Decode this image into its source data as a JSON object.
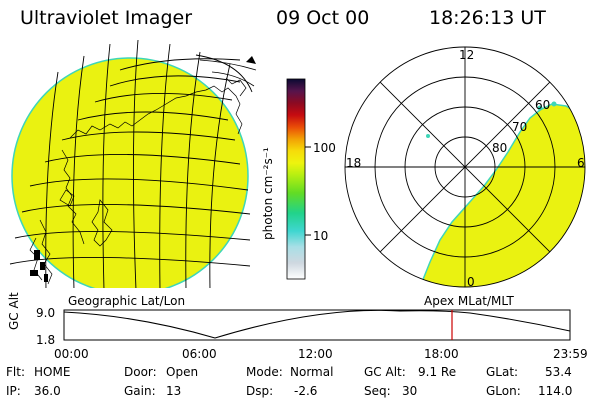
{
  "header": {
    "instrument": "Ultraviolet Imager",
    "date": "09 Oct 00",
    "time": "18:26:13 UT"
  },
  "left_panel": {
    "caption": "Geographic Lat/Lon"
  },
  "right_panel": {
    "caption": "Apex MLat/MLT",
    "mlt_labels": [
      "12",
      "18",
      "6",
      "0"
    ],
    "mlat_labels": [
      "60",
      "70",
      "80"
    ]
  },
  "colorbar": {
    "label": "photon cm⁻²s⁻¹",
    "ticks": [
      "100",
      "10"
    ],
    "scale": "log"
  },
  "gc_alt_plot": {
    "ylabel": "GC Alt",
    "yticks": [
      "9.0",
      "1.8"
    ],
    "xticks": [
      "00:00",
      "06:00",
      "12:00",
      "18:00",
      "23:59"
    ],
    "current_time_marker": "18:26",
    "marker_color": "#cc0000"
  },
  "status": {
    "flt_label": "Flt:",
    "flt_value": "HOME",
    "ip_label": "IP:",
    "ip_value": "36.0",
    "door_label": "Door:",
    "door_value": "Open",
    "gain_label": "Gain:",
    "gain_value": "13",
    "mode_label": "Mode:",
    "mode_value": "Normal",
    "dsp_label": "Dsp:",
    "dsp_value": "-2.6",
    "gcalt_label": "GC Alt:",
    "gcalt_value": "9.1 Re",
    "seq_label": "Seq:",
    "seq_value": "30",
    "glat_label": "GLat:",
    "glat_value": "53.4",
    "glon_label": "GLon:",
    "glon_value": "114.0"
  },
  "colors": {
    "emission": "#eaf211",
    "edge": "#3ed6b8"
  }
}
